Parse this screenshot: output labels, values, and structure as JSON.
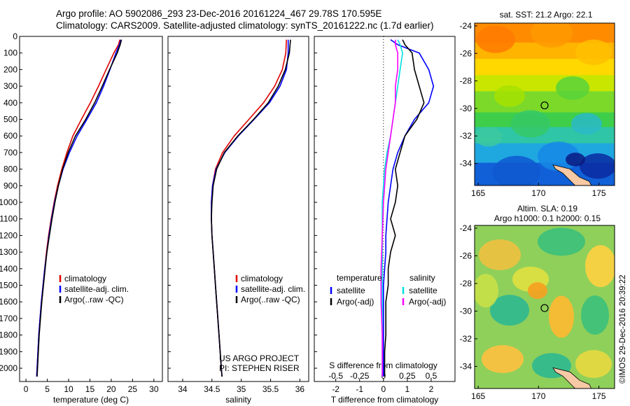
{
  "header": {
    "line1": "Argo profile: AO 5902086_293 23-Dec-2016 20161224_467 29.78S 170.595E",
    "line2": "Climatology: CARS2009. Satellite-adjusted climatology: synTS_20161222.nc (1.7d earlier)"
  },
  "colors": {
    "climatology": "#e00000",
    "satellite": "#0000ff",
    "argo": "#000000",
    "sal_satellite": "#00e0e0",
    "sal_argo": "#ff00ff"
  },
  "depth_axis": {
    "ticks": [
      0,
      100,
      200,
      300,
      400,
      500,
      600,
      700,
      800,
      900,
      1000,
      1100,
      1200,
      1300,
      1400,
      1500,
      1600,
      1700,
      1800,
      1900,
      2000
    ],
    "ylim": [
      0,
      2080
    ]
  },
  "chart_data": [
    {
      "type": "line",
      "xlabel": "temperature (deg C)",
      "xlim": [
        -1.5,
        32
      ],
      "xticks": [
        0,
        5,
        10,
        15,
        20,
        25,
        30
      ],
      "legend": [
        "climatology",
        "satellite-adj. clim.",
        "Argo(..raw -QC)"
      ],
      "series": [
        {
          "name": "climatology",
          "color": "#e00000",
          "points": [
            [
              22.0,
              20
            ],
            [
              21.7,
              50
            ],
            [
              20.6,
              100
            ],
            [
              18.8,
              200
            ],
            [
              17.0,
              300
            ],
            [
              15.1,
              400
            ],
            [
              13.0,
              500
            ],
            [
              11.0,
              600
            ],
            [
              9.6,
              700
            ],
            [
              8.4,
              800
            ],
            [
              7.4,
              900
            ],
            [
              6.6,
              1000
            ],
            [
              5.9,
              1100
            ],
            [
              5.3,
              1200
            ],
            [
              4.8,
              1300
            ],
            [
              4.4,
              1400
            ],
            [
              4.0,
              1500
            ],
            [
              3.6,
              1600
            ],
            [
              3.3,
              1700
            ],
            [
              3.0,
              1800
            ],
            [
              2.8,
              1900
            ],
            [
              2.6,
              2000
            ],
            [
              2.5,
              2050
            ]
          ]
        },
        {
          "name": "satellite-adj. clim.",
          "color": "#0000ff",
          "points": [
            [
              22.3,
              20
            ],
            [
              21.9,
              50
            ],
            [
              21.1,
              100
            ],
            [
              19.7,
              200
            ],
            [
              18.2,
              300
            ],
            [
              16.5,
              400
            ],
            [
              14.3,
              500
            ],
            [
              12.0,
              600
            ],
            [
              10.2,
              700
            ],
            [
              8.7,
              800
            ],
            [
              7.6,
              900
            ],
            [
              6.7,
              1000
            ],
            [
              6.0,
              1100
            ],
            [
              5.4,
              1200
            ],
            [
              4.9,
              1300
            ],
            [
              4.4,
              1400
            ],
            [
              4.0,
              1500
            ],
            [
              3.6,
              1600
            ],
            [
              3.3,
              1700
            ],
            [
              3.0,
              1800
            ],
            [
              2.8,
              1900
            ],
            [
              2.6,
              2000
            ],
            [
              2.5,
              2050
            ]
          ]
        },
        {
          "name": "Argo(..raw -QC)",
          "color": "#000000",
          "points": [
            [
              22.4,
              20
            ],
            [
              22.1,
              50
            ],
            [
              21.4,
              100
            ],
            [
              19.6,
              200
            ],
            [
              17.9,
              300
            ],
            [
              16.1,
              400
            ],
            [
              14.0,
              500
            ],
            [
              11.6,
              600
            ],
            [
              9.9,
              700
            ],
            [
              8.6,
              800
            ],
            [
              7.6,
              900
            ],
            [
              6.8,
              1000
            ],
            [
              6.1,
              1100
            ],
            [
              5.5,
              1200
            ],
            [
              4.9,
              1300
            ],
            [
              4.5,
              1400
            ],
            [
              4.1,
              1500
            ],
            [
              3.7,
              1600
            ],
            [
              3.4,
              1700
            ],
            [
              3.1,
              1800
            ],
            [
              2.9,
              1900
            ],
            [
              2.7,
              2000
            ],
            [
              2.6,
              2050
            ]
          ]
        }
      ]
    },
    {
      "type": "line",
      "xlabel": "salinity",
      "xlim": [
        33.75,
        36.15
      ],
      "xticks": [
        34,
        34.5,
        35,
        35.5,
        36
      ],
      "legend": [
        "climatology",
        "satellite-adj. clim.",
        "Argo(..raw -QC)"
      ],
      "annotation": [
        "US ARGO PROJECT",
        "PI: STEPHEN RISER"
      ],
      "series": [
        {
          "name": "climatology",
          "color": "#e00000",
          "points": [
            [
              35.77,
              20
            ],
            [
              35.76,
              100
            ],
            [
              35.7,
              200
            ],
            [
              35.57,
              300
            ],
            [
              35.38,
              400
            ],
            [
              35.13,
              500
            ],
            [
              34.88,
              600
            ],
            [
              34.68,
              700
            ],
            [
              34.56,
              800
            ],
            [
              34.51,
              900
            ],
            [
              34.49,
              1000
            ],
            [
              34.49,
              1100
            ],
            [
              34.5,
              1200
            ],
            [
              34.52,
              1300
            ],
            [
              34.54,
              1400
            ],
            [
              34.56,
              1500
            ],
            [
              34.58,
              1600
            ],
            [
              34.6,
              1700
            ],
            [
              34.62,
              1800
            ],
            [
              34.64,
              1900
            ],
            [
              34.66,
              2000
            ],
            [
              34.67,
              2050
            ]
          ]
        },
        {
          "name": "satellite-adj. clim.",
          "color": "#0000ff",
          "points": [
            [
              35.8,
              20
            ],
            [
              35.8,
              100
            ],
            [
              35.77,
              200
            ],
            [
              35.66,
              300
            ],
            [
              35.48,
              400
            ],
            [
              35.22,
              500
            ],
            [
              34.95,
              600
            ],
            [
              34.72,
              700
            ],
            [
              34.57,
              800
            ],
            [
              34.51,
              900
            ],
            [
              34.49,
              1000
            ],
            [
              34.49,
              1100
            ],
            [
              34.5,
              1200
            ],
            [
              34.52,
              1300
            ],
            [
              34.54,
              1400
            ],
            [
              34.56,
              1500
            ],
            [
              34.58,
              1600
            ],
            [
              34.6,
              1700
            ],
            [
              34.62,
              1800
            ],
            [
              34.64,
              1900
            ],
            [
              34.66,
              2000
            ],
            [
              34.67,
              2050
            ]
          ]
        },
        {
          "name": "Argo(..raw -QC)",
          "color": "#000000",
          "points": [
            [
              35.84,
              20
            ],
            [
              35.82,
              100
            ],
            [
              35.75,
              200
            ],
            [
              35.63,
              300
            ],
            [
              35.46,
              400
            ],
            [
              35.21,
              500
            ],
            [
              34.94,
              600
            ],
            [
              34.71,
              700
            ],
            [
              34.58,
              800
            ],
            [
              34.52,
              900
            ],
            [
              34.5,
              1000
            ],
            [
              34.49,
              1100
            ],
            [
              34.5,
              1200
            ],
            [
              34.52,
              1300
            ],
            [
              34.54,
              1400
            ],
            [
              34.56,
              1500
            ],
            [
              34.58,
              1600
            ],
            [
              34.6,
              1700
            ],
            [
              34.62,
              1800
            ],
            [
              34.64,
              1900
            ],
            [
              34.66,
              2000
            ],
            [
              34.67,
              2050
            ]
          ]
        }
      ]
    },
    {
      "type": "line",
      "xlabel": "T difference from climatology",
      "xlabel_top": "S difference from climatology",
      "xlim": [
        -2.9,
        3.0
      ],
      "xticks": [
        -2,
        -1,
        0,
        1,
        2
      ],
      "xticks_top_labels": [
        "-0.5",
        "-0.25",
        "0",
        "0.25",
        "0.5"
      ],
      "legend": {
        "temperature": "temperature",
        "salinity": "salinity",
        "t_sat": "satellite",
        "t_argo": "Argo(-adj)",
        "s_sat": "satellite",
        "s_argo": "Argo(-adj)"
      },
      "series": [
        {
          "name": "satellite",
          "color": "#0000ff",
          "points": [
            [
              0.3,
              20
            ],
            [
              0.6,
              50
            ],
            [
              1.5,
              100
            ],
            [
              1.9,
              200
            ],
            [
              2.1,
              300
            ],
            [
              1.9,
              400
            ],
            [
              1.3,
              500
            ],
            [
              0.9,
              600
            ],
            [
              0.6,
              700
            ],
            [
              0.4,
              800
            ],
            [
              0.3,
              900
            ],
            [
              0.2,
              1000
            ],
            [
              0.15,
              1100
            ],
            [
              0.1,
              1200
            ],
            [
              0.1,
              1300
            ],
            [
              0.05,
              1400
            ],
            [
              0.0,
              1500
            ],
            [
              0.0,
              1700
            ],
            [
              0.0,
              2050
            ]
          ]
        },
        {
          "name": "Argo(-adj)",
          "color": "#000000",
          "points": [
            [
              0.8,
              20
            ],
            [
              0.9,
              50
            ],
            [
              1.2,
              100
            ],
            [
              1.3,
              200
            ],
            [
              1.5,
              300
            ],
            [
              1.7,
              400
            ],
            [
              1.4,
              500
            ],
            [
              0.9,
              600
            ],
            [
              0.7,
              700
            ],
            [
              0.5,
              800
            ],
            [
              0.6,
              900
            ],
            [
              0.5,
              1000
            ],
            [
              0.3,
              1100
            ],
            [
              0.5,
              1200
            ],
            [
              0.3,
              1300
            ],
            [
              0.2,
              1400
            ],
            [
              0.2,
              1500
            ],
            [
              0.1,
              1600
            ],
            [
              0.1,
              1700
            ],
            [
              0.1,
              1800
            ],
            [
              0.05,
              1900
            ],
            [
              0.05,
              2050
            ]
          ]
        },
        {
          "name": "satellite",
          "color": "#00e0e0",
          "points": [
            [
              0.6,
              20
            ],
            [
              0.7,
              50
            ],
            [
              0.8,
              100
            ],
            [
              0.7,
              200
            ],
            [
              0.6,
              300
            ],
            [
              0.5,
              400
            ],
            [
              0.4,
              500
            ],
            [
              0.3,
              600
            ],
            [
              0.15,
              700
            ],
            [
              0.05,
              800
            ],
            [
              0.0,
              900
            ],
            [
              -0.05,
              1000
            ],
            [
              -0.05,
              1200
            ],
            [
              -0.05,
              1400
            ],
            [
              -0.05,
              1600
            ],
            [
              -0.05,
              1800
            ],
            [
              -0.05,
              2050
            ]
          ]
        },
        {
          "name": "Argo(-adj)",
          "color": "#ff00ff",
          "points": [
            [
              0.5,
              20
            ],
            [
              0.5,
              50
            ],
            [
              0.6,
              100
            ],
            [
              0.6,
              200
            ],
            [
              0.5,
              300
            ],
            [
              0.5,
              400
            ],
            [
              0.4,
              500
            ],
            [
              0.3,
              600
            ],
            [
              0.2,
              700
            ],
            [
              0.1,
              800
            ],
            [
              0.05,
              900
            ],
            [
              0.0,
              1000
            ],
            [
              -0.05,
              1200
            ],
            [
              -0.1,
              1400
            ],
            [
              -0.1,
              1600
            ],
            [
              -0.05,
              1800
            ],
            [
              -0.05,
              2050
            ]
          ]
        }
      ]
    }
  ],
  "maps": {
    "sst": {
      "title": "sat. SST: 21.2 Argo: 22.1",
      "xticks": [
        165,
        170,
        175
      ],
      "yticks": [
        -24,
        -26,
        -28,
        -30,
        -32,
        -34
      ],
      "xlim": [
        164.7,
        176.3
      ],
      "ylim": [
        -35.6,
        -23.8
      ],
      "point": [
        170.5,
        -29.78
      ]
    },
    "sla": {
      "title_line1": "Altim. SLA: 0.19",
      "title_line2": "Argo h1000: 0.1 h2000: 0.15",
      "xticks": [
        165,
        170,
        175
      ],
      "yticks": [
        -24,
        -26,
        -28,
        -30,
        -32,
        -34
      ],
      "xlim": [
        164.7,
        176.3
      ],
      "ylim": [
        -35.6,
        -23.8
      ],
      "point": [
        170.5,
        -29.78
      ]
    }
  },
  "footer_stamp": "©IMOS 29-Dec-2016 20:39:22"
}
